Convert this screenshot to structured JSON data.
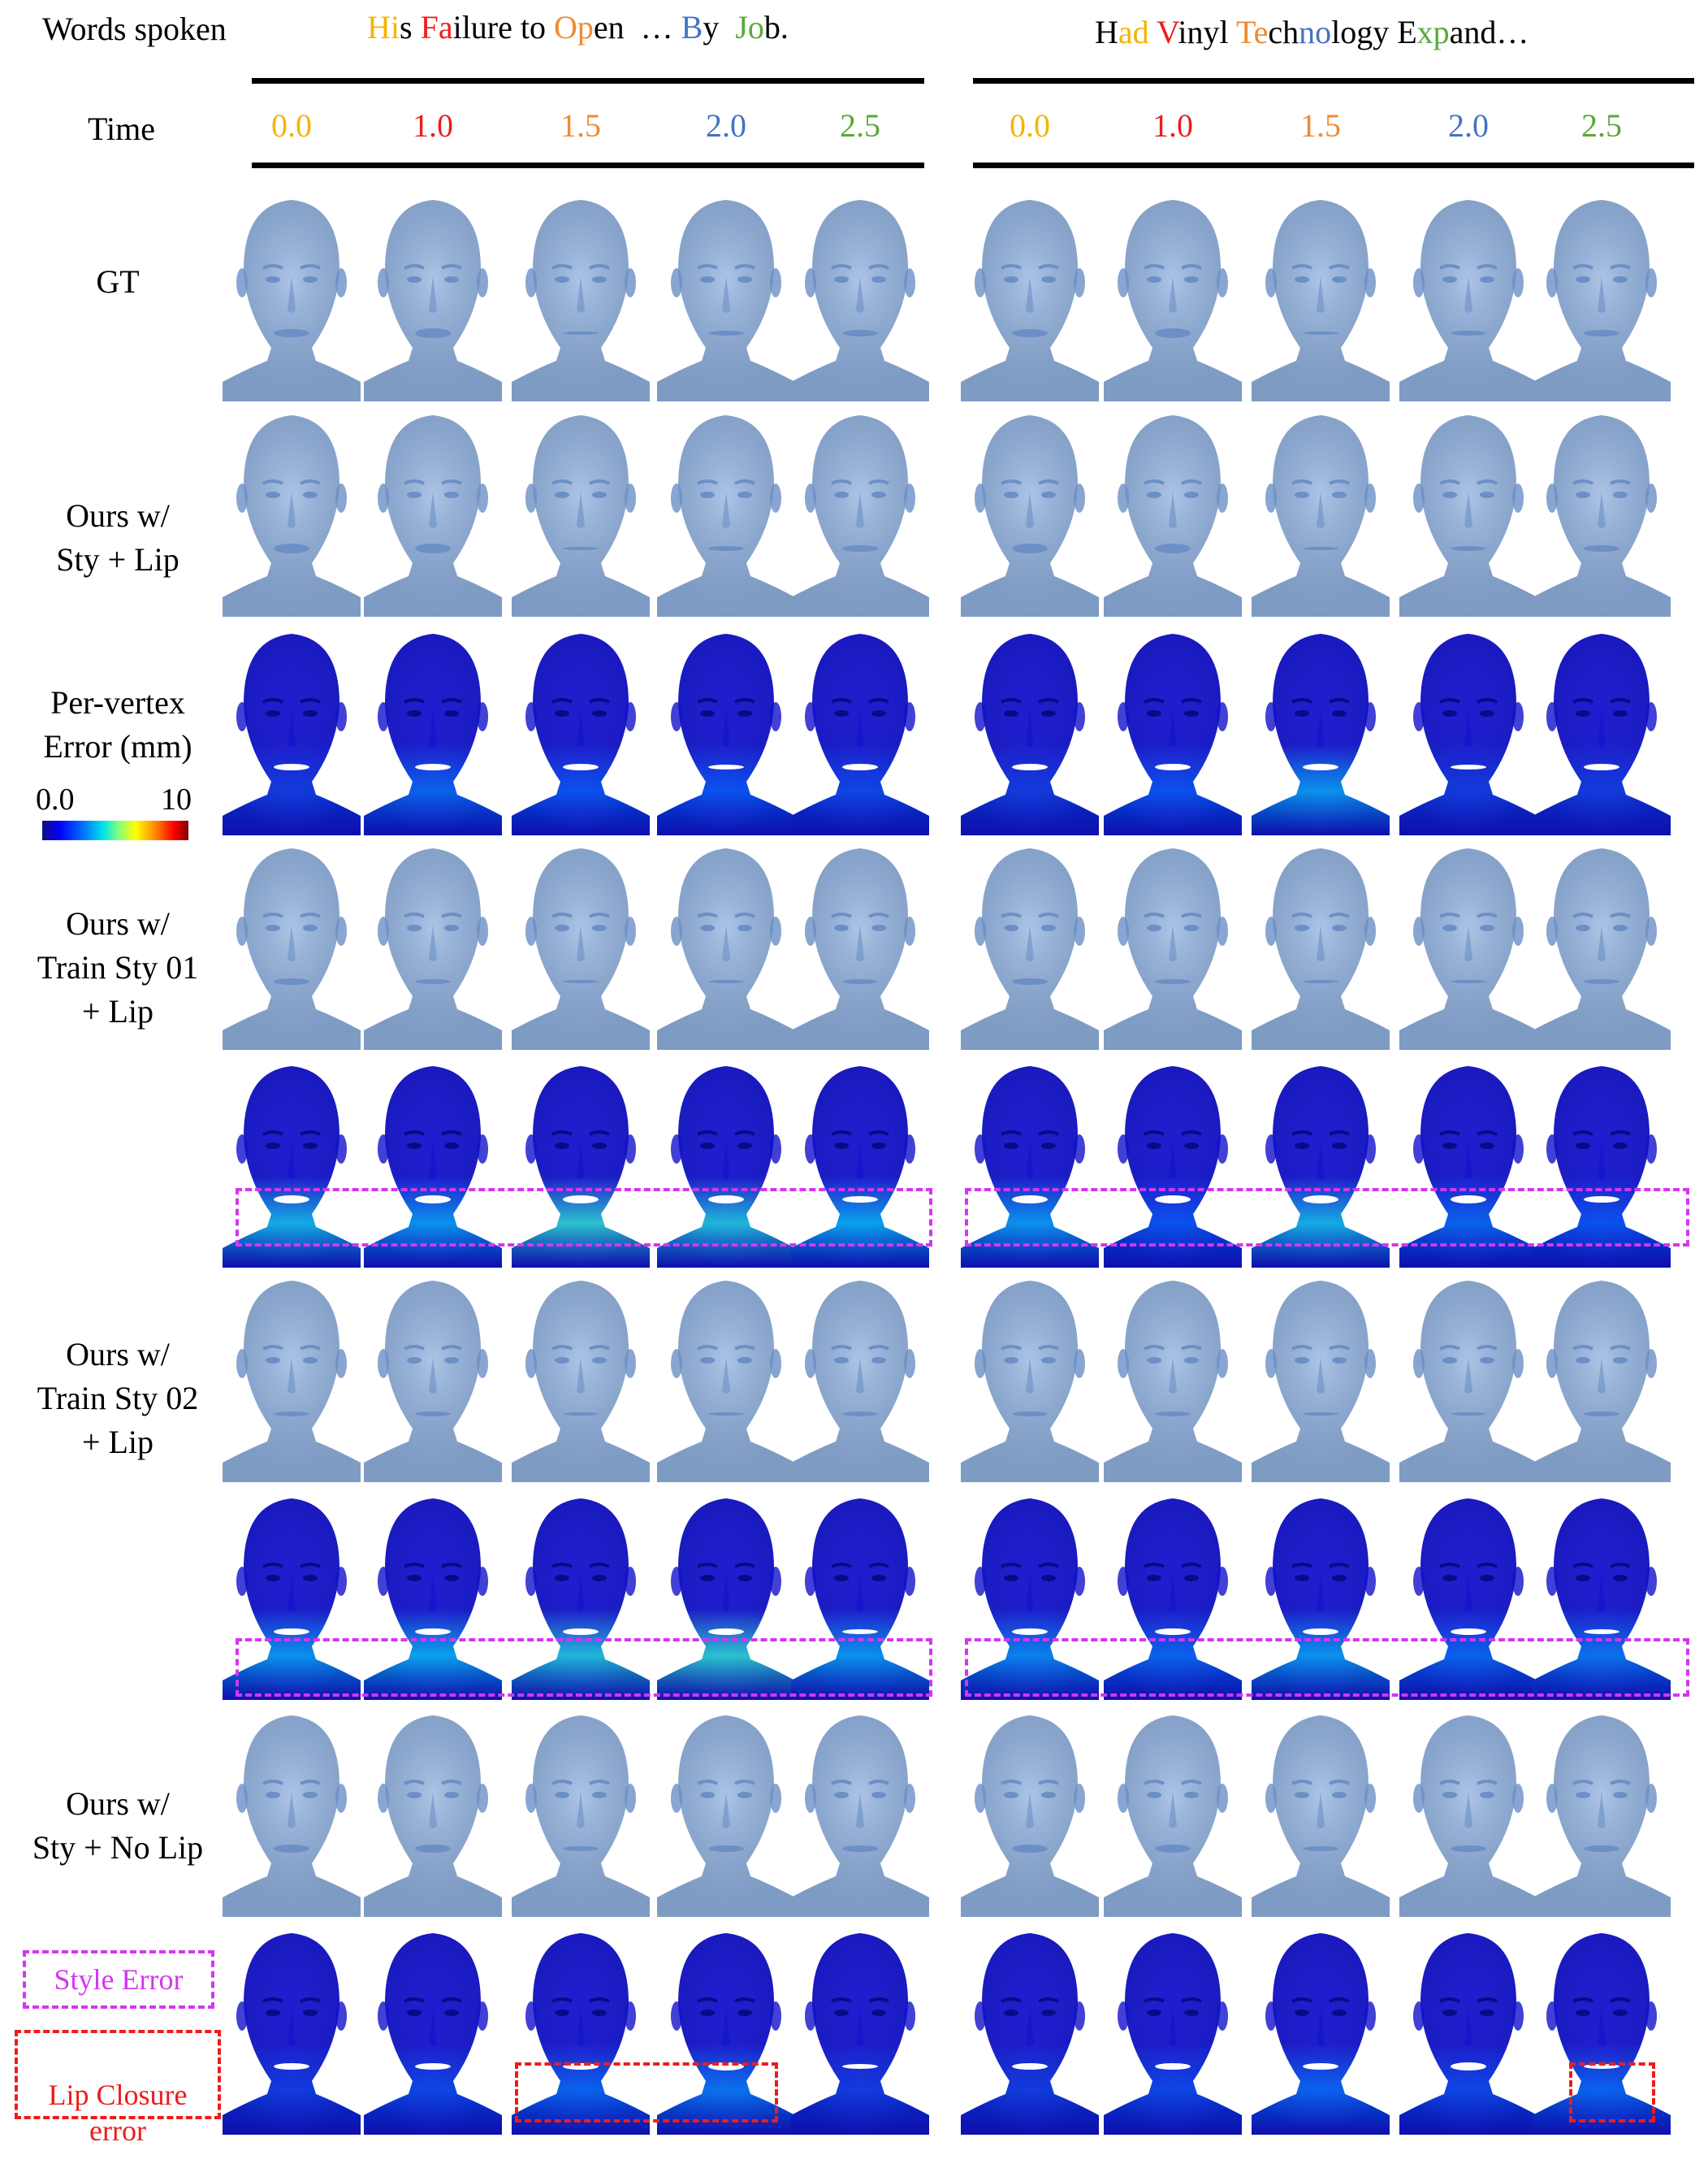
{
  "header": {
    "words_label": "Words spoken",
    "time_label": "Time",
    "left_words": [
      {
        "text": "Hi",
        "color": "#f5b400"
      },
      {
        "text": "s ",
        "color": "#000000"
      },
      {
        "text": "Fa",
        "color": "#ee1c1c"
      },
      {
        "text": "ilure to ",
        "color": "#000000"
      },
      {
        "text": "Op",
        "color": "#f08a30"
      },
      {
        "text": "en  … ",
        "color": "#000000"
      },
      {
        "text": "B",
        "color": "#4472c4"
      },
      {
        "text": "y  ",
        "color": "#000000"
      },
      {
        "text": "Jo",
        "color": "#5aa83a"
      },
      {
        "text": "b.",
        "color": "#000000"
      }
    ],
    "right_words": [
      {
        "text": "H",
        "color": "#000000"
      },
      {
        "text": "ad",
        "color": "#f5b400"
      },
      {
        "text": " ",
        "color": "#000000"
      },
      {
        "text": "V",
        "color": "#ee1c1c"
      },
      {
        "text": "inyl ",
        "color": "#000000"
      },
      {
        "text": "Te",
        "color": "#f08a30"
      },
      {
        "text": "ch",
        "color": "#000000"
      },
      {
        "text": "no",
        "color": "#4472c4"
      },
      {
        "text": "logy E",
        "color": "#000000"
      },
      {
        "text": "xp",
        "color": "#5aa83a"
      },
      {
        "text": "and…",
        "color": "#000000"
      }
    ],
    "times": [
      {
        "value": "0.0",
        "color": "#f5b400"
      },
      {
        "value": "1.0",
        "color": "#ee1c1c"
      },
      {
        "value": "1.5",
        "color": "#f08a30"
      },
      {
        "value": "2.0",
        "color": "#4472c4"
      },
      {
        "value": "2.5",
        "color": "#5aa83a"
      }
    ]
  },
  "rows": [
    {
      "label": "GT",
      "kind": "mesh"
    },
    {
      "label": "Ours w/\nSty + Lip",
      "kind": "mesh"
    },
    {
      "label": "Per-vertex\nError (mm)",
      "kind": "error",
      "error_levels_left": [
        0.15,
        0.3,
        0.25,
        0.25,
        0.2
      ],
      "error_levels_right": [
        0.15,
        0.25,
        0.45,
        0.15,
        0.15
      ]
    },
    {
      "label": "Ours w/\nTrain Sty 01\n+ Lip",
      "kind": "mesh"
    },
    {
      "label": "",
      "kind": "error",
      "error_levels_left": [
        0.55,
        0.45,
        0.65,
        0.6,
        0.5
      ],
      "error_levels_right": [
        0.45,
        0.25,
        0.55,
        0.3,
        0.25
      ]
    },
    {
      "label": "Ours w/\nTrain Sty 02\n+ Lip",
      "kind": "mesh"
    },
    {
      "label": "",
      "kind": "error",
      "error_levels_left": [
        0.45,
        0.5,
        0.6,
        0.65,
        0.45
      ],
      "error_levels_right": [
        0.4,
        0.3,
        0.45,
        0.3,
        0.35
      ]
    },
    {
      "label": "Ours w/\nSty + No Lip",
      "kind": "mesh"
    },
    {
      "label": "",
      "kind": "error",
      "error_levels_left": [
        0.15,
        0.2,
        0.3,
        0.35,
        0.15
      ],
      "error_levels_right": [
        0.15,
        0.2,
        0.3,
        0.2,
        0.3
      ]
    }
  ],
  "colorbar": {
    "min": "0.0",
    "max": "10"
  },
  "legend": {
    "style_error": "Style Error",
    "style_error_color": "#d535f2",
    "lip_error": "Lip Closure\nerror",
    "lip_error_color": "#ee1c1c"
  },
  "colors": {
    "mesh_face": "#8fb0df",
    "mesh_shadow": "#6c8fc6",
    "error_base": "#1111cc"
  }
}
